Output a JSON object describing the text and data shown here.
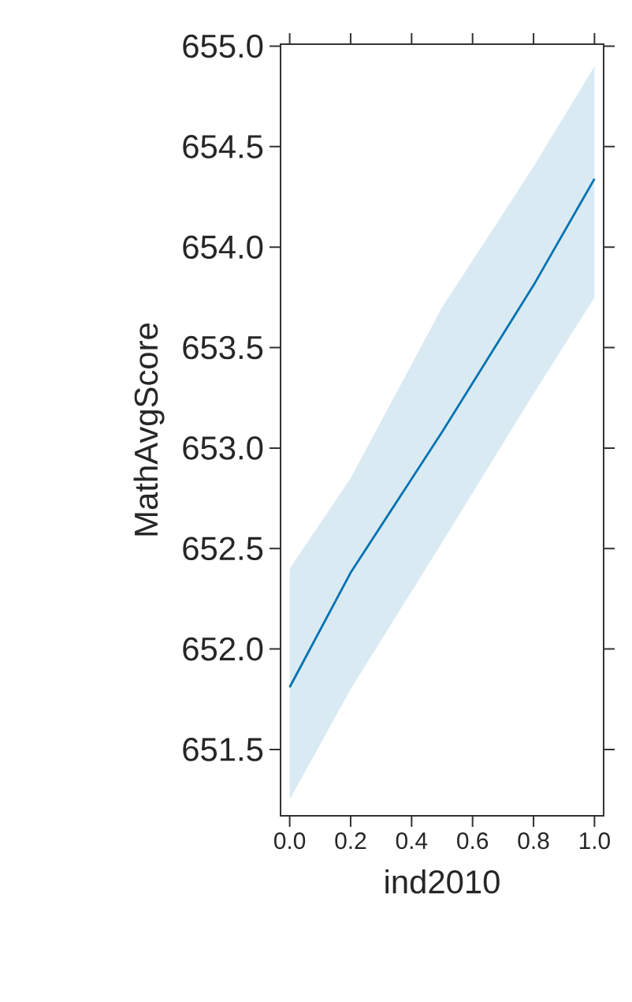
{
  "chart_data": {
    "type": "line",
    "xlabel": "ind2010",
    "ylabel": "MathAvgScore",
    "xlim": [
      -0.03,
      1.03
    ],
    "ylim": [
      651.17,
      655.01
    ],
    "xticks": [
      {
        "value": 0,
        "label": "0.0"
      },
      {
        "value": 0.2,
        "label": "0.2"
      },
      {
        "value": 0.4,
        "label": "0.4"
      },
      {
        "value": 0.6,
        "label": "0.6"
      },
      {
        "value": 0.8,
        "label": "0.8"
      },
      {
        "value": 1,
        "label": "1.0"
      }
    ],
    "yticks": [
      651.5,
      {
        "value": 652,
        "label": "652.0"
      },
      652.5,
      {
        "value": 653,
        "label": "653.0"
      },
      653.5,
      {
        "value": 654,
        "label": "654.0"
      },
      654.5,
      {
        "value": 655,
        "label": "655.0"
      }
    ],
    "series": [
      {
        "color": "#0072b2",
        "x": [
          0,
          0.2,
          0.5,
          0.8,
          1
        ],
        "values": [
          651.81,
          652.38,
          653.08,
          653.81,
          654.34
        ],
        "lower": [
          651.25,
          651.8,
          652.53,
          653.27,
          653.75
        ],
        "upper": [
          652.4,
          652.85,
          653.7,
          654.4,
          654.9
        ]
      }
    ],
    "grid": false
  }
}
